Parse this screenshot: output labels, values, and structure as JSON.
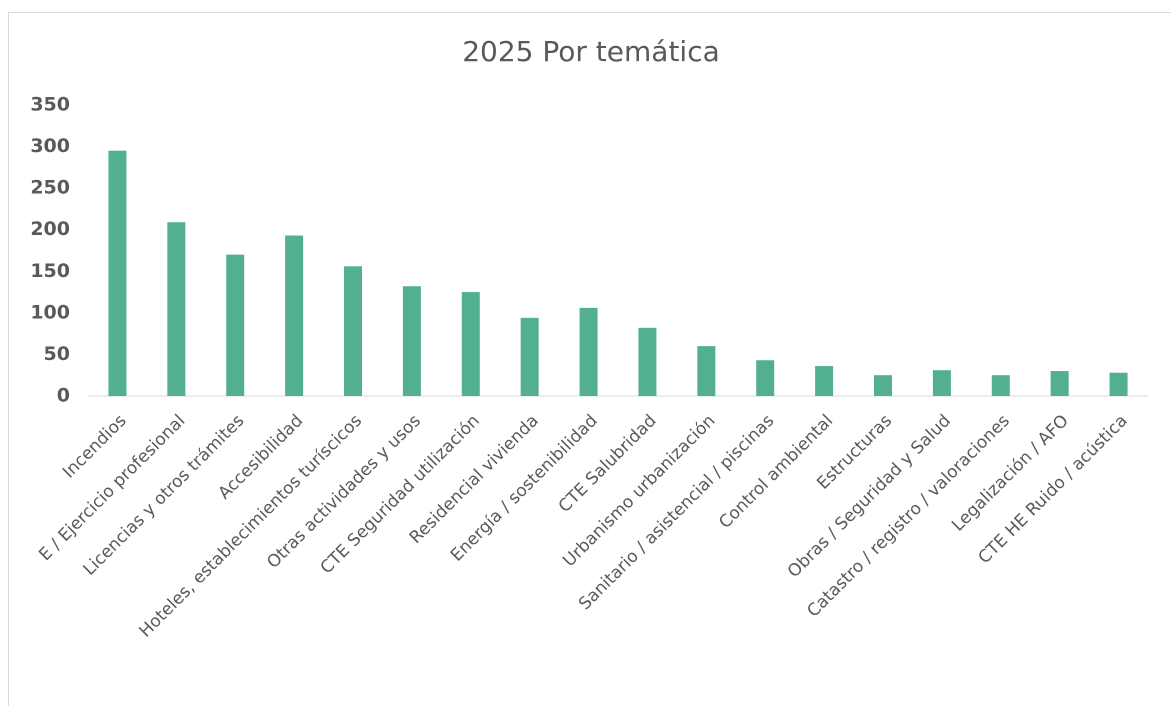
{
  "chart_data": {
    "type": "bar",
    "title": "2025 Por temática",
    "categories": [
      "Incendios",
      "E / Ejercicio profesional",
      "Licencias y otros trámites",
      "Accesibilidad",
      "Hoteles, establecimientos turíscicos",
      "Otras actividades y usos",
      "CTE Seguridad utilización",
      "Residencial vivienda",
      "Energía / sostenibilidad",
      "CTE Salubridad",
      "Urbanismo urbanización",
      "Sanitario / asistencial / piscinas",
      "Control ambiental",
      "Estructuras",
      "Obras / Seguridad y Salud",
      "Catastro / registro / valoraciones",
      "Legalización / AFO",
      "CTE HE Ruido / acústica"
    ],
    "values": [
      295,
      209,
      170,
      193,
      156,
      132,
      125,
      94,
      106,
      82,
      60,
      43,
      36,
      25,
      31,
      25,
      30,
      28
    ],
    "color": "#52b08e",
    "ylim": [
      0,
      350
    ],
    "yticks": [
      0,
      50,
      100,
      150,
      200,
      250,
      300,
      350
    ],
    "grid": false
  }
}
